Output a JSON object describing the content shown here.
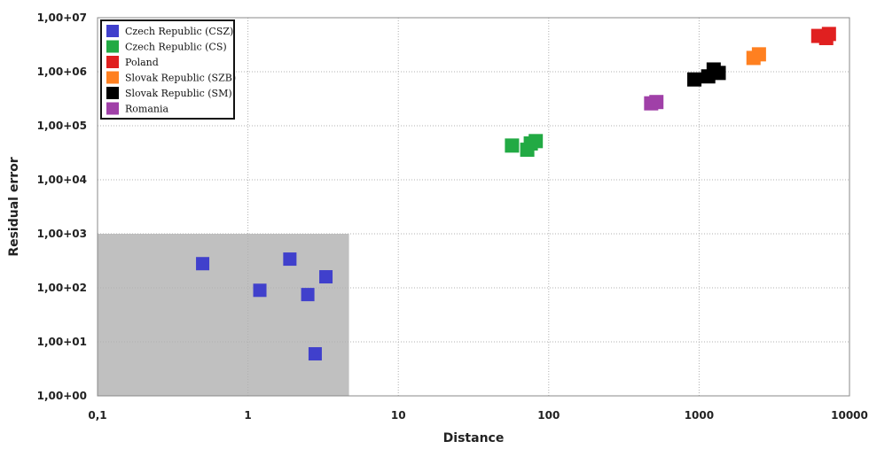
{
  "chart_data": {
    "type": "scatter",
    "x_scale": "log",
    "y_scale": "log",
    "xlim": [
      0.1,
      10000
    ],
    "ylim": [
      1,
      10000000
    ],
    "xlabel": "Distance",
    "ylabel": "Residual error",
    "x_ticks": [
      {
        "value": 0.1,
        "label": "0,1"
      },
      {
        "value": 1,
        "label": "1"
      },
      {
        "value": 10,
        "label": "10"
      },
      {
        "value": 100,
        "label": "100"
      },
      {
        "value": 1000,
        "label": "1000"
      },
      {
        "value": 10000,
        "label": "10000"
      }
    ],
    "y_ticks": [
      {
        "value": 1,
        "label": "1,00+00"
      },
      {
        "value": 10,
        "label": "1,00+01"
      },
      {
        "value": 100,
        "label": "1,00+02"
      },
      {
        "value": 1000,
        "label": "1,00+03"
      },
      {
        "value": 10000,
        "label": "1,00+04"
      },
      {
        "value": 100000,
        "label": "1,00+05"
      },
      {
        "value": 1000000,
        "label": "1,00+06"
      },
      {
        "value": 10000000,
        "label": "1,00+07"
      }
    ],
    "grid": true,
    "legend_position": "top-left",
    "shaded_region": {
      "x": [
        0.1,
        4.7
      ],
      "y": [
        1,
        1000
      ],
      "color": "#c0c0c0"
    },
    "series": [
      {
        "name": "Czech Republic (CSZ)",
        "color": "#4040cc",
        "points": [
          [
            0.5,
            280
          ],
          [
            1.2,
            90
          ],
          [
            1.9,
            340
          ],
          [
            2.5,
            75
          ],
          [
            3.3,
            160
          ],
          [
            2.8,
            6
          ]
        ]
      },
      {
        "name": "Czech Republic (CS)",
        "color": "#22aa44",
        "points": [
          [
            57,
            43000
          ],
          [
            72,
            36000
          ],
          [
            76,
            47000
          ],
          [
            82,
            52000
          ]
        ]
      },
      {
        "name": "Poland",
        "color": "#e02020",
        "points": [
          [
            6200,
            4600000
          ],
          [
            7000,
            4200000
          ],
          [
            7300,
            5000000
          ]
        ]
      },
      {
        "name": "Slovak Republic (SZB)",
        "color": "#ff8020",
        "points": [
          [
            2300,
            1800000
          ],
          [
            2500,
            2100000
          ]
        ]
      },
      {
        "name": "Slovak Republic (SM)",
        "color": "#000000",
        "points": [
          [
            930,
            720000
          ],
          [
            1150,
            820000
          ],
          [
            1250,
            1100000
          ],
          [
            1350,
            950000
          ]
        ]
      },
      {
        "name": "Romania",
        "color": "#a040a8",
        "points": [
          [
            480,
            260000
          ],
          [
            520,
            275000
          ]
        ]
      }
    ]
  }
}
